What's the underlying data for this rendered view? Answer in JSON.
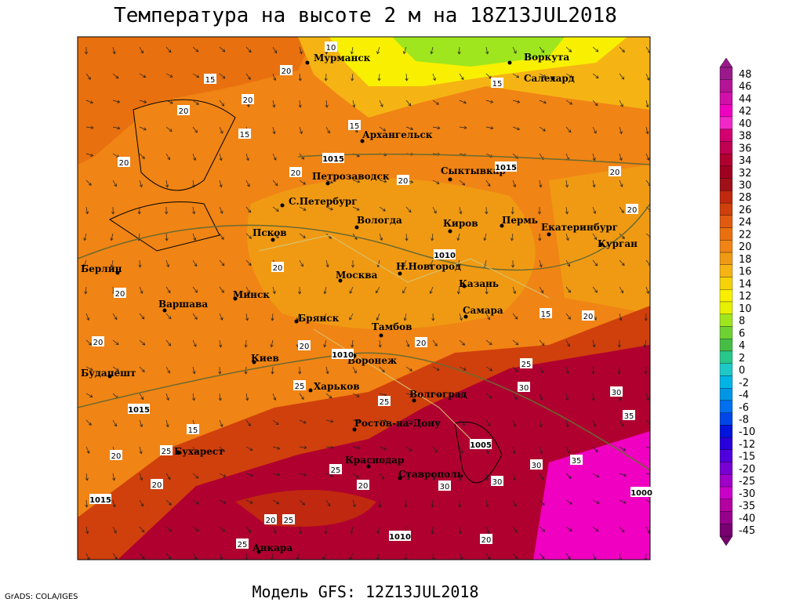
{
  "header": {
    "title": "Температура на высоте 2 м на 18Z13JUL2018"
  },
  "footer": {
    "model": "Модель GFS: 12Z13JUL2018",
    "credit": "GrADS: COLA/IGES"
  },
  "cities": [
    "Мурманск",
    "Воркута",
    "Салехард",
    "Архангельск",
    "Петрозаводск",
    "Сыктывкар",
    "С.Петербург",
    "Вологда",
    "Киров",
    "Пермь",
    "Екатеринбург",
    "Курган",
    "Псков",
    "Берлин",
    "Н.Новгород",
    "Москва",
    "Казань",
    "Минск",
    "Варшава",
    "Самара",
    "Брянск",
    "Тамбов",
    "Киев",
    "Воронеж",
    "Будапешт",
    "Харьков",
    "Волгоград",
    "Ростов-на-Дону",
    "Бухарест",
    "Краснодар",
    "Ставрополь",
    "Анкара"
  ],
  "isobar_labels": [
    "1015",
    "1015",
    "1010",
    "1010",
    "1015",
    "1005",
    "1015",
    "1010",
    "1000"
  ],
  "isotherm_labels": [
    "10",
    "15",
    "20",
    "20",
    "15",
    "20",
    "15",
    "20",
    "20",
    "20",
    "15",
    "20",
    "20",
    "20",
    "20",
    "20",
    "15",
    "20",
    "20",
    "20",
    "30",
    "25",
    "30",
    "25",
    "25",
    "15",
    "20",
    "25",
    "20",
    "25",
    "30",
    "30",
    "35",
    "30",
    "35",
    "20",
    "25",
    "20",
    "25",
    "20"
  ],
  "legend": {
    "labels": [
      "48",
      "46",
      "44",
      "42",
      "40",
      "38",
      "36",
      "34",
      "32",
      "30",
      "28",
      "26",
      "24",
      "22",
      "20",
      "18",
      "16",
      "14",
      "12",
      "10",
      "8",
      "6",
      "4",
      "2",
      "0",
      "-2",
      "-4",
      "-6",
      "-8",
      "-10",
      "-12",
      "-15",
      "-20",
      "-25",
      "-30",
      "-35",
      "-40",
      "-45"
    ],
    "colors": [
      "#9a1a8c",
      "#b41496",
      "#d010a8",
      "#f000c0",
      "#f028c8",
      "#d2006e",
      "#c00050",
      "#b00030",
      "#a00020",
      "#a01018",
      "#c02810",
      "#d0400c",
      "#e05a10",
      "#e8700e",
      "#f08414",
      "#f09a14",
      "#f5b414",
      "#f5d20a",
      "#f8f000",
      "#e6f000",
      "#a0e61e",
      "#6ed232",
      "#46be46",
      "#28c88c",
      "#1ec8c8",
      "#00b4e6",
      "#0096e6",
      "#0070f0",
      "#0046e6",
      "#0014dc",
      "#2800dc",
      "#5000dc",
      "#7800d2",
      "#a000c8",
      "#c800c8",
      "#b400a0",
      "#96008a",
      "#780070"
    ]
  }
}
